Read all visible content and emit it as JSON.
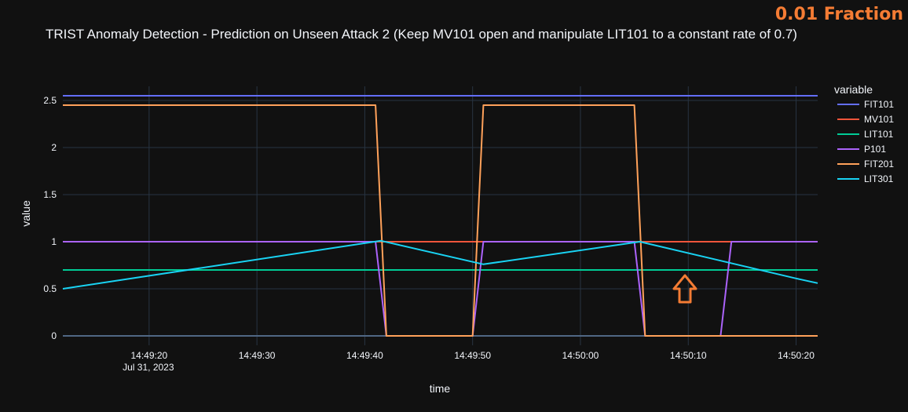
{
  "badge": "0.01 Fraction",
  "arrow_icon": "up-arrow-icon",
  "chart_data": {
    "type": "line",
    "title": "TRIST Anomaly Detection - Prediction on Unseen Attack 2 (Keep MV101 open and manipulate LIT101 to a constant rate of 0.7)",
    "xlabel": "time",
    "ylabel": "value",
    "xlim": [
      "2023-07-31 14:49:12",
      "2023-07-31 14:50:22"
    ],
    "ylim": [
      -0.1,
      2.65
    ],
    "x_ticks": [
      {
        "value": "2023-07-31 14:49:20",
        "label": "14:49:20",
        "sublabel": "Jul 31, 2023"
      },
      {
        "value": "2023-07-31 14:49:30",
        "label": "14:49:30"
      },
      {
        "value": "2023-07-31 14:49:40",
        "label": "14:49:40"
      },
      {
        "value": "2023-07-31 14:49:50",
        "label": "14:49:50"
      },
      {
        "value": "2023-07-31 14:50:00",
        "label": "14:50:00"
      },
      {
        "value": "2023-07-31 14:50:10",
        "label": "14:50:10"
      },
      {
        "value": "2023-07-31 14:50:20",
        "label": "14:50:20"
      }
    ],
    "y_ticks": [
      {
        "value": 0,
        "label": "0"
      },
      {
        "value": 0.5,
        "label": "0.5"
      },
      {
        "value": 1,
        "label": "1"
      },
      {
        "value": 1.5,
        "label": "1.5"
      },
      {
        "value": 2,
        "label": "2"
      },
      {
        "value": 2.5,
        "label": "2.5"
      }
    ],
    "grid": true,
    "legend": {
      "title": "variable",
      "placement": "right"
    },
    "series": [
      {
        "name": "FIT101",
        "color": "#636efa",
        "x": [
          "2023-07-31 14:49:12",
          "2023-07-31 14:50:22"
        ],
        "y": [
          2.55,
          2.55
        ]
      },
      {
        "name": "MV101",
        "color": "#ef553b",
        "x": [
          "2023-07-31 14:49:12",
          "2023-07-31 14:50:22"
        ],
        "y": [
          1,
          1
        ]
      },
      {
        "name": "LIT101",
        "color": "#00cc96",
        "x": [
          "2023-07-31 14:49:12",
          "2023-07-31 14:50:22"
        ],
        "y": [
          0.7,
          0.7
        ]
      },
      {
        "name": "P101",
        "color": "#ab63fa",
        "x": [
          "2023-07-31 14:49:12",
          "2023-07-31 14:49:41",
          "2023-07-31 14:49:42",
          "2023-07-31 14:49:50",
          "2023-07-31 14:49:51",
          "2023-07-31 14:50:05",
          "2023-07-31 14:50:06",
          "2023-07-31 14:50:13",
          "2023-07-31 14:50:14",
          "2023-07-31 14:50:22"
        ],
        "y": [
          1,
          1,
          0,
          0,
          1,
          1,
          0,
          0,
          1,
          1
        ]
      },
      {
        "name": "FIT201",
        "color": "#ffa15a",
        "x": [
          "2023-07-31 14:49:12",
          "2023-07-31 14:49:41",
          "2023-07-31 14:49:42",
          "2023-07-31 14:49:50",
          "2023-07-31 14:49:51",
          "2023-07-31 14:50:05",
          "2023-07-31 14:50:06",
          "2023-07-31 14:50:22"
        ],
        "y": [
          2.45,
          2.45,
          0,
          0,
          2.45,
          2.45,
          0,
          0
        ]
      },
      {
        "name": "LIT301",
        "color": "#19d3f3",
        "x": [
          "2023-07-31 14:49:12",
          "2023-07-31 14:49:41.5",
          "2023-07-31 14:49:51",
          "2023-07-31 14:50:05.5",
          "2023-07-31 14:50:20",
          "2023-07-31 14:50:22"
        ],
        "y": [
          0.5,
          1.01,
          0.76,
          1.0,
          0.61,
          0.56
        ]
      }
    ]
  }
}
